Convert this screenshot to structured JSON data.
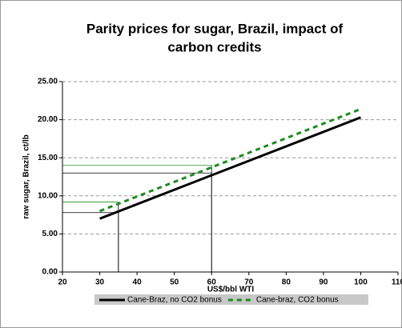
{
  "chart_data": {
    "type": "line",
    "title": [
      "Parity prices for sugar, Brazil, impact of",
      "carbon credits"
    ],
    "xlabel": "US$/bbl WTI",
    "ylabel": "raw sugar, Brazil, ct/lb",
    "x": [
      30,
      100
    ],
    "series": [
      {
        "name": "Cane-Braz, no CO2 bonus",
        "color": "#000000",
        "dash": false,
        "values": [
          7.0,
          20.3
        ]
      },
      {
        "name": "Cane-braz, CO2 bonus",
        "color": "#1e8a1e",
        "dash": true,
        "values": [
          8.0,
          21.4
        ]
      }
    ],
    "guides": [
      {
        "x": 35,
        "y": 7.8,
        "color": "#000000"
      },
      {
        "x": 35,
        "y": 9.2,
        "color": "#1e8a1e"
      },
      {
        "x": 60,
        "y": 13.0,
        "color": "#000000"
      },
      {
        "x": 60,
        "y": 14.0,
        "color": "#1e8a1e"
      }
    ],
    "xlim": [
      20,
      110
    ],
    "xticks": [
      20,
      30,
      40,
      50,
      60,
      70,
      80,
      90,
      100,
      110
    ],
    "ylim": [
      0,
      25
    ],
    "yticks": [
      {
        "value": 0,
        "label": "0.00"
      },
      {
        "value": 5,
        "label": "5.00"
      },
      {
        "value": 10,
        "label": "10.00"
      },
      {
        "value": 15,
        "label": "15.00"
      },
      {
        "value": 20,
        "label": "20.00"
      },
      {
        "value": 25,
        "label": "25.00"
      }
    ],
    "grid": true,
    "legend": "bottom"
  }
}
